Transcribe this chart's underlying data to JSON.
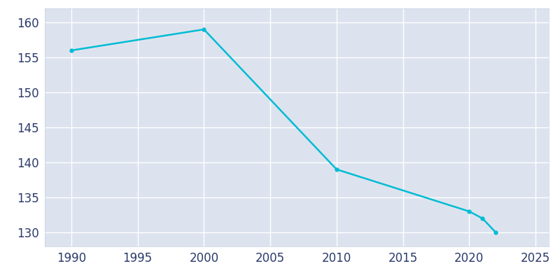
{
  "years": [
    1990,
    2000,
    2010,
    2020,
    2021,
    2022
  ],
  "population": [
    156,
    159,
    139,
    133,
    132,
    130
  ],
  "line_color": "#00bcd4",
  "marker": "o",
  "marker_size": 3.5,
  "background_color": "#dde3ee",
  "plot_bg_color": "#dde3ee",
  "grid_color": "#ffffff",
  "xlim": [
    1988,
    2026
  ],
  "ylim": [
    128,
    162
  ],
  "xticks": [
    1990,
    1995,
    2000,
    2005,
    2010,
    2015,
    2020,
    2025
  ],
  "yticks": [
    130,
    135,
    140,
    145,
    150,
    155,
    160
  ],
  "tick_label_color": "#2b3a6b",
  "tick_label_fontsize": 12,
  "spine_color": "#c8d0e0",
  "linewidth": 1.8,
  "figure_bg": "#ffffff"
}
